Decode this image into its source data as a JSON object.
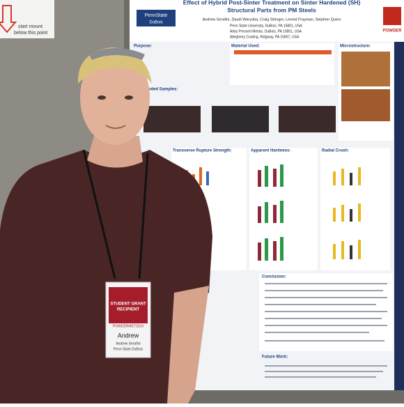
{
  "sign": {
    "text_line1": "start mount",
    "text_line2": "below this point"
  },
  "poster": {
    "logo": "PennState",
    "campus": "DuBois",
    "title_line1": "Effect of Hybrid Post-Sinter Treatment on Sinter Hardened (SH)",
    "title_line2": "Structural Parts from PM Steels",
    "authors": "Andrew Serafini, Daudi Waryoba, Craig Stringer, Leonid Frayman, Stephen Quinn",
    "affiliations": [
      "Penn State University, DuBois, PA 15801, USA",
      "Atlas Pressed Metals, DuBois, PA 15801, USA",
      "Allegheny Coating, Ridgway, PA 15857, USA"
    ],
    "brand": "POWDER",
    "sections": {
      "purpose": "Purpose:",
      "material": "Material Used:",
      "microstructure": "Microstructure:",
      "corroded": "Corroded Samples:",
      "trs": "Transverse Rupture Strength:",
      "hardness": "Apparent Hardness:",
      "crush": "Radial Crush:",
      "conclusion": "Conclusion:",
      "future": "Future Work:"
    }
  },
  "badge": {
    "header": "STUDENT GRANT",
    "header2": "RECIPIENT",
    "event": "POWDERMET2019",
    "first_name": "Andrew",
    "full_name": "Andrew Serafini",
    "school": "Penn State DuBois"
  }
}
